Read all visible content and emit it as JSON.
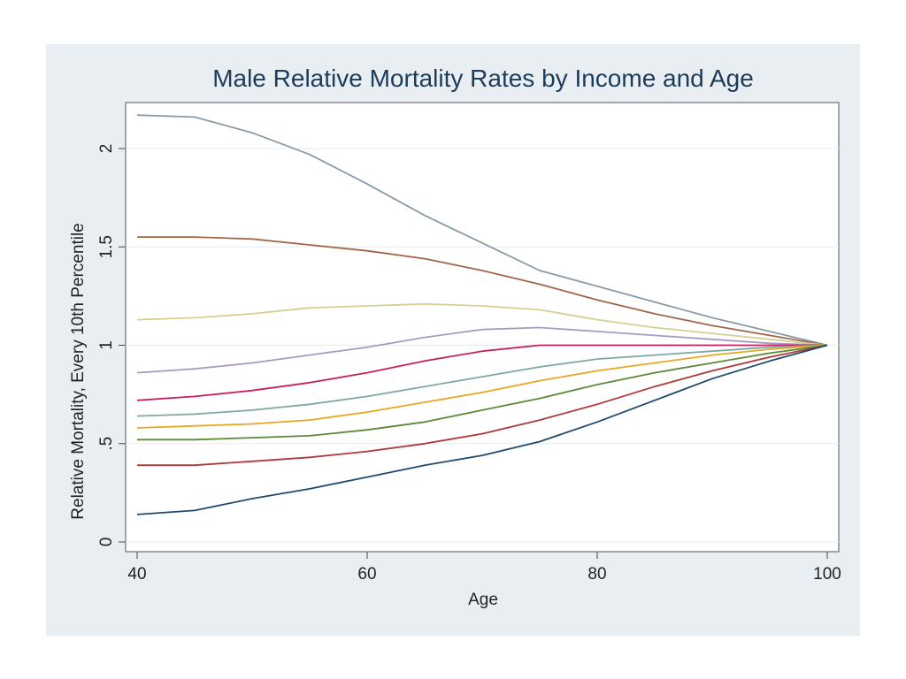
{
  "chart_data": {
    "type": "line",
    "title": "Male Relative Mortality Rates by Income and Age",
    "xlabel": "Age",
    "ylabel": "Relative Mortality, Every 10th Percentile",
    "xlim": [
      40,
      100
    ],
    "ylim": [
      0,
      2.2
    ],
    "x_ticks": [
      40,
      60,
      80,
      100
    ],
    "x_tick_labels": [
      "40",
      "60",
      "80",
      "100"
    ],
    "y_ticks": [
      0,
      0.5,
      1,
      1.5,
      2
    ],
    "y_tick_labels": [
      "0",
      ".5",
      "1",
      "1.5",
      "2"
    ],
    "grid": true,
    "legend": "none",
    "x": [
      40,
      45,
      50,
      55,
      60,
      65,
      70,
      75,
      80,
      85,
      90,
      95,
      100
    ],
    "series": [
      {
        "color": "#8a9ba6",
        "values": [
          2.17,
          2.16,
          2.08,
          1.97,
          1.82,
          1.66,
          1.52,
          1.38,
          1.3,
          1.22,
          1.14,
          1.07,
          1.0
        ]
      },
      {
        "color": "#a0674a",
        "values": [
          1.55,
          1.55,
          1.54,
          1.51,
          1.48,
          1.44,
          1.38,
          1.31,
          1.23,
          1.16,
          1.1,
          1.05,
          1.0
        ]
      },
      {
        "color": "#d6cf90",
        "values": [
          1.13,
          1.14,
          1.16,
          1.19,
          1.2,
          1.21,
          1.2,
          1.18,
          1.13,
          1.09,
          1.06,
          1.03,
          1.0
        ]
      },
      {
        "color": "#a99ac2",
        "values": [
          0.86,
          0.88,
          0.91,
          0.95,
          0.99,
          1.04,
          1.08,
          1.09,
          1.07,
          1.05,
          1.03,
          1.01,
          1.0
        ]
      },
      {
        "color": "#c62060",
        "values": [
          0.72,
          0.74,
          0.77,
          0.81,
          0.86,
          0.92,
          0.97,
          1.0,
          1.0,
          1.0,
          1.0,
          1.0,
          1.0
        ]
      },
      {
        "color": "#7fa8a5",
        "values": [
          0.64,
          0.65,
          0.67,
          0.7,
          0.74,
          0.79,
          0.84,
          0.89,
          0.93,
          0.95,
          0.97,
          0.99,
          1.0
        ]
      },
      {
        "color": "#e8a823",
        "values": [
          0.58,
          0.59,
          0.6,
          0.62,
          0.66,
          0.71,
          0.76,
          0.82,
          0.87,
          0.91,
          0.95,
          0.98,
          1.0
        ]
      },
      {
        "color": "#5a8a3a",
        "values": [
          0.52,
          0.52,
          0.53,
          0.54,
          0.57,
          0.61,
          0.67,
          0.73,
          0.8,
          0.86,
          0.91,
          0.96,
          1.0
        ]
      },
      {
        "color": "#b03838",
        "values": [
          0.39,
          0.39,
          0.41,
          0.43,
          0.46,
          0.5,
          0.55,
          0.62,
          0.7,
          0.79,
          0.87,
          0.94,
          1.0
        ]
      },
      {
        "color": "#1f4a70",
        "values": [
          0.14,
          0.16,
          0.22,
          0.27,
          0.33,
          0.39,
          0.44,
          0.51,
          0.61,
          0.72,
          0.83,
          0.92,
          1.0
        ]
      }
    ]
  }
}
